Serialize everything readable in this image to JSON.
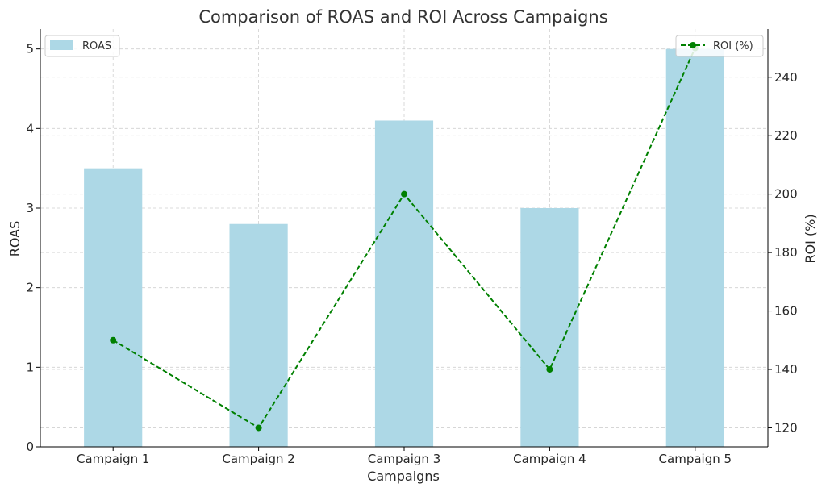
{
  "chart_data": {
    "type": "bar",
    "title": "Comparison of ROAS and ROI Across Campaigns",
    "xlabel": "Campaigns",
    "ylabel": "ROAS",
    "ylabel_right": "ROI (%)",
    "categories": [
      "Campaign 1",
      "Campaign 2",
      "Campaign 3",
      "Campaign 4",
      "Campaign 5"
    ],
    "series": [
      {
        "name": "ROAS",
        "type": "bar",
        "axis": "left",
        "color": "#add8e6",
        "values": [
          3.5,
          2.8,
          4.1,
          3.0,
          5.0
        ]
      },
      {
        "name": "ROI (%)",
        "type": "line",
        "axis": "right",
        "color": "#008000",
        "line_style": "dashed",
        "marker": "circle",
        "values": [
          150,
          120,
          200,
          140,
          250
        ]
      }
    ],
    "ylim": [
      0,
      5.25
    ],
    "ylim_right": [
      113.5,
      256.5
    ],
    "yticks": [
      "0",
      "1",
      "2",
      "3",
      "4",
      "5"
    ],
    "yticks_right": [
      "120",
      "140",
      "160",
      "180",
      "200",
      "220",
      "240"
    ],
    "grid": true,
    "legend_left_placement": "top-left",
    "legend_right_placement": "top-right"
  }
}
